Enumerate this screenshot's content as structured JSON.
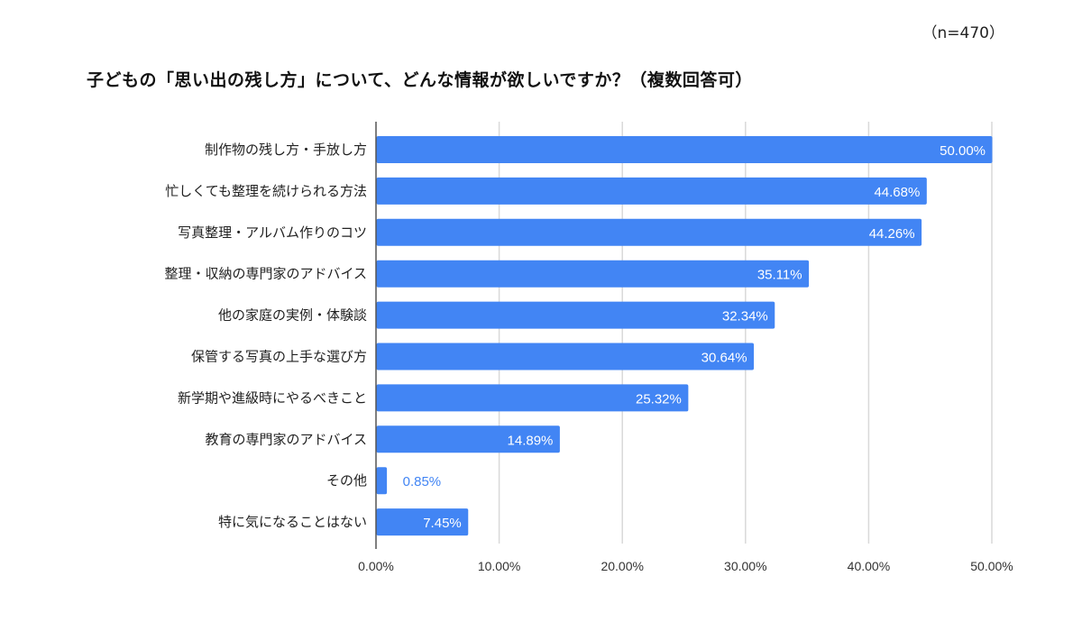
{
  "chart_data": {
    "type": "bar",
    "orientation": "horizontal",
    "title": "子どもの「思い出の残し方」について、どんな情報が欲しいですか？（複数回答可）",
    "sample_size_label": "（n=470）",
    "categories": [
      "制作物の残し方・手放し方",
      "忙しくても整理を続けられる方法",
      "写真整理・アルバム作りのコツ",
      "整理・収納の専門家のアドバイス",
      "他の家庭の実例・体験談",
      "保管する写真の上手な選び方",
      "新学期や進級時にやるべきこと",
      "教育の専門家のアドバイス",
      "その他",
      "特に気になることはない"
    ],
    "values": [
      50.0,
      44.68,
      44.26,
      35.11,
      32.34,
      30.64,
      25.32,
      14.89,
      0.85,
      7.45
    ],
    "data_labels": [
      "50.00%",
      "44.68%",
      "44.26%",
      "35.11%",
      "32.34%",
      "30.64%",
      "25.32%",
      "14.89%",
      "0.85%",
      "7.45%"
    ],
    "xlim": [
      0,
      50
    ],
    "x_ticks": [
      0,
      10,
      20,
      30,
      40,
      50
    ],
    "x_tick_labels": [
      "0.00%",
      "10.00%",
      "20.00%",
      "30.00%",
      "40.00%",
      "50.00%"
    ],
    "xlabel": "",
    "ylabel": "",
    "grid": true,
    "legend": "none",
    "colors": {
      "bar": "#4285f4",
      "label_inside": "#ffffff",
      "label_outside": "#4285f4",
      "grid": "#d9d9d9",
      "axis": "#555555"
    }
  }
}
